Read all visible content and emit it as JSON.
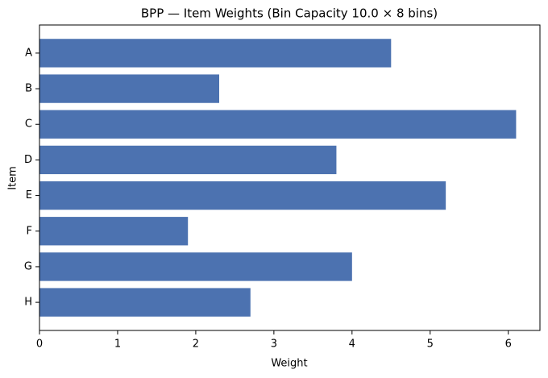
{
  "chart_data": {
    "type": "bar",
    "orientation": "horizontal",
    "title": "BPP — Item Weights (Bin Capacity 10.0 × 8 bins)",
    "x_label": "Weight",
    "y_label": "Item",
    "categories": [
      "A",
      "B",
      "C",
      "D",
      "E",
      "F",
      "G",
      "H"
    ],
    "values": [
      4.5,
      2.3,
      6.1,
      3.8,
      5.2,
      1.9,
      4.0,
      2.7
    ],
    "color": "#4c72b0",
    "xlim": [
      0,
      6.405
    ],
    "xticks": [
      0,
      1,
      2,
      3,
      4,
      5,
      6
    ],
    "grid": false
  }
}
